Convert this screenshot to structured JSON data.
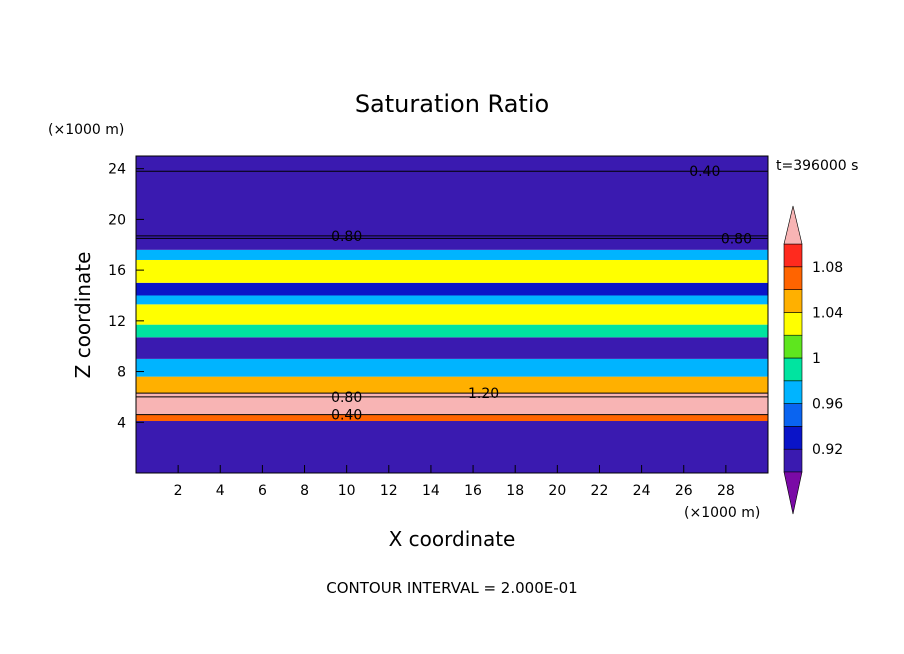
{
  "chart_data": {
    "type": "heatmap",
    "title": "Saturation Ratio",
    "time_label": "t=396000 s",
    "xlabel": "X coordinate",
    "ylabel": "Z coordinate",
    "x_units": "(×1000 m)",
    "y_units": "(×1000 m)",
    "xlim": [
      0,
      30
    ],
    "ylim": [
      0,
      25
    ],
    "x_ticks": [
      "2",
      "4",
      "6",
      "8",
      "10",
      "12",
      "14",
      "16",
      "18",
      "20",
      "22",
      "24",
      "26",
      "28"
    ],
    "y_ticks": [
      "4",
      "8",
      "12",
      "16",
      "20",
      "24"
    ],
    "footer": "CONTOUR INTERVAL = 2.000E-01",
    "colorbar": {
      "labels": [
        "0.92",
        "0.96",
        "1",
        "1.04",
        "1.08"
      ],
      "levels": [
        0.9,
        0.92,
        0.94,
        0.96,
        0.98,
        1.0,
        1.02,
        1.04,
        1.06,
        1.08,
        1.1
      ],
      "colors": [
        "#7a0aa6",
        "#3a1ab0",
        "#0a14c8",
        "#0a64f0",
        "#00b4ff",
        "#00e4a0",
        "#5ee61e",
        "#ffff00",
        "#ffb000",
        "#ff6400",
        "#ff2a1e",
        "#f8b4b4"
      ]
    },
    "bands": [
      {
        "z0": 0.0,
        "z1": 4.1,
        "level": 0.9
      },
      {
        "z0": 4.1,
        "z1": 4.6,
        "level": 1.06
      },
      {
        "z0": 4.6,
        "z1": 6.3,
        "level": 1.1
      },
      {
        "z0": 6.3,
        "z1": 7.6,
        "level": 1.04
      },
      {
        "z0": 7.6,
        "z1": 9.0,
        "level": 0.97
      },
      {
        "z0": 9.0,
        "z1": 10.7,
        "level": 0.9
      },
      {
        "z0": 10.7,
        "z1": 11.7,
        "level": 0.98
      },
      {
        "z0": 11.7,
        "z1": 13.3,
        "level": 1.03
      },
      {
        "z0": 13.3,
        "z1": 14.0,
        "level": 0.97
      },
      {
        "z0": 14.0,
        "z1": 15.0,
        "level": 0.93
      },
      {
        "z0": 15.0,
        "z1": 16.8,
        "level": 1.02
      },
      {
        "z0": 16.8,
        "z1": 17.6,
        "level": 0.96
      },
      {
        "z0": 17.6,
        "z1": 25.0,
        "level": 0.9
      }
    ],
    "contours": [
      {
        "label": "0.40",
        "x": 10,
        "z": 4.6
      },
      {
        "label": "0.40",
        "x": 27,
        "z": 23.8
      },
      {
        "label": "0.80",
        "x": 10,
        "z": 6.0
      },
      {
        "label": "0.80",
        "x": 10,
        "z": 18.7
      },
      {
        "label": "0.80",
        "x": 28.5,
        "z": 18.5
      },
      {
        "label": "1.20",
        "x": 16.5,
        "z": 6.3
      }
    ]
  }
}
